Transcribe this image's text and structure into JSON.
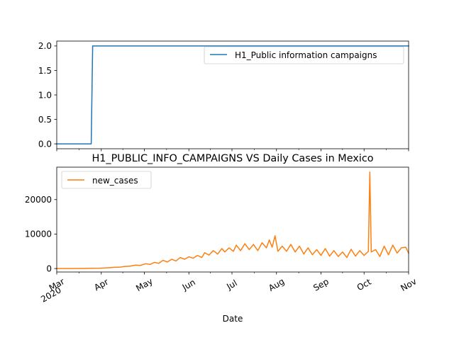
{
  "chart_data": [
    {
      "type": "line",
      "title": "",
      "xlabel": "",
      "ylabel": "",
      "xlim": [
        "2020-03-01",
        "2020-11-01"
      ],
      "ylim": [
        -0.1,
        2.1
      ],
      "yticks": [
        "0.0",
        "0.5",
        "1.0",
        "1.5",
        "2.0"
      ],
      "legend": "top-right",
      "grid": false,
      "series": [
        {
          "name": "H1_Public information campaigns",
          "color": "#1f77b4",
          "points": [
            [
              "2020-03-01",
              0
            ],
            [
              "2020-03-25",
              0
            ],
            [
              "2020-03-26",
              2
            ],
            [
              "2020-11-01",
              2
            ]
          ]
        }
      ]
    },
    {
      "type": "line",
      "title": "H1_PUBLIC_INFO_CAMPAIGNS VS Daily Cases in Mexico",
      "xlabel": "Date",
      "ylabel": "",
      "xlim": [
        "2020-03-01",
        "2020-11-01"
      ],
      "ylim": [
        -1000,
        29400
      ],
      "yticks": [
        "0",
        "10000",
        "20000"
      ],
      "xticks": [
        {
          "date": "2020-03-01",
          "label": "Mar",
          "sub": "2020"
        },
        {
          "date": "2020-04-01",
          "label": "Apr"
        },
        {
          "date": "2020-05-01",
          "label": "May"
        },
        {
          "date": "2020-06-01",
          "label": "Jun"
        },
        {
          "date": "2020-07-01",
          "label": "Jul"
        },
        {
          "date": "2020-08-01",
          "label": "Aug"
        },
        {
          "date": "2020-09-01",
          "label": "Sep"
        },
        {
          "date": "2020-10-01",
          "label": "Oct"
        },
        {
          "date": "2020-11-01",
          "label": "Nov"
        }
      ],
      "legend": "top-left",
      "grid": false,
      "series": [
        {
          "name": "new_cases",
          "color": "#ff7f0e",
          "points": [
            [
              "2020-03-01",
              0
            ],
            [
              "2020-03-10",
              5
            ],
            [
              "2020-03-20",
              40
            ],
            [
              "2020-03-25",
              70
            ],
            [
              "2020-03-31",
              100
            ],
            [
              "2020-04-05",
              200
            ],
            [
              "2020-04-10",
              350
            ],
            [
              "2020-04-14",
              400
            ],
            [
              "2020-04-17",
              600
            ],
            [
              "2020-04-21",
              700
            ],
            [
              "2020-04-25",
              1000
            ],
            [
              "2020-04-28",
              900
            ],
            [
              "2020-05-02",
              1400
            ],
            [
              "2020-05-05",
              1200
            ],
            [
              "2020-05-08",
              1800
            ],
            [
              "2020-05-11",
              1500
            ],
            [
              "2020-05-14",
              2400
            ],
            [
              "2020-05-17",
              1900
            ],
            [
              "2020-05-20",
              2700
            ],
            [
              "2020-05-23",
              2200
            ],
            [
              "2020-05-26",
              3200
            ],
            [
              "2020-05-29",
              2700
            ],
            [
              "2020-06-01",
              3400
            ],
            [
              "2020-06-04",
              3000
            ],
            [
              "2020-06-07",
              3800
            ],
            [
              "2020-06-10",
              3200
            ],
            [
              "2020-06-12",
              4600
            ],
            [
              "2020-06-15",
              3900
            ],
            [
              "2020-06-18",
              5200
            ],
            [
              "2020-06-21",
              4200
            ],
            [
              "2020-06-24",
              5800
            ],
            [
              "2020-06-26",
              4800
            ],
            [
              "2020-06-29",
              6000
            ],
            [
              "2020-07-02",
              5000
            ],
            [
              "2020-07-04",
              6800
            ],
            [
              "2020-07-07",
              5200
            ],
            [
              "2020-07-10",
              7200
            ],
            [
              "2020-07-13",
              5500
            ],
            [
              "2020-07-16",
              7000
            ],
            [
              "2020-07-19",
              5200
            ],
            [
              "2020-07-22",
              7500
            ],
            [
              "2020-07-25",
              6000
            ],
            [
              "2020-07-27",
              8300
            ],
            [
              "2020-07-29",
              6200
            ],
            [
              "2020-07-31",
              9500
            ],
            [
              "2020-08-02",
              5000
            ],
            [
              "2020-08-05",
              6500
            ],
            [
              "2020-08-08",
              5000
            ],
            [
              "2020-08-11",
              7000
            ],
            [
              "2020-08-14",
              4800
            ],
            [
              "2020-08-17",
              6500
            ],
            [
              "2020-08-20",
              4200
            ],
            [
              "2020-08-23",
              6000
            ],
            [
              "2020-08-26",
              4000
            ],
            [
              "2020-08-29",
              5500
            ],
            [
              "2020-09-01",
              3800
            ],
            [
              "2020-09-04",
              5800
            ],
            [
              "2020-09-07",
              3600
            ],
            [
              "2020-09-10",
              5200
            ],
            [
              "2020-09-13",
              3500
            ],
            [
              "2020-09-16",
              4800
            ],
            [
              "2020-09-19",
              3200
            ],
            [
              "2020-09-22",
              5600
            ],
            [
              "2020-09-25",
              3600
            ],
            [
              "2020-09-28",
              5200
            ],
            [
              "2020-10-01",
              3800
            ],
            [
              "2020-10-04",
              5000
            ],
            [
              "2020-10-05",
              28000
            ],
            [
              "2020-10-06",
              4800
            ],
            [
              "2020-10-09",
              5500
            ],
            [
              "2020-10-12",
              3500
            ],
            [
              "2020-10-15",
              6500
            ],
            [
              "2020-10-18",
              4000
            ],
            [
              "2020-10-21",
              6800
            ],
            [
              "2020-10-24",
              4500
            ],
            [
              "2020-10-27",
              6000
            ],
            [
              "2020-10-30",
              6200
            ],
            [
              "2020-11-01",
              4500
            ]
          ]
        }
      ]
    }
  ]
}
